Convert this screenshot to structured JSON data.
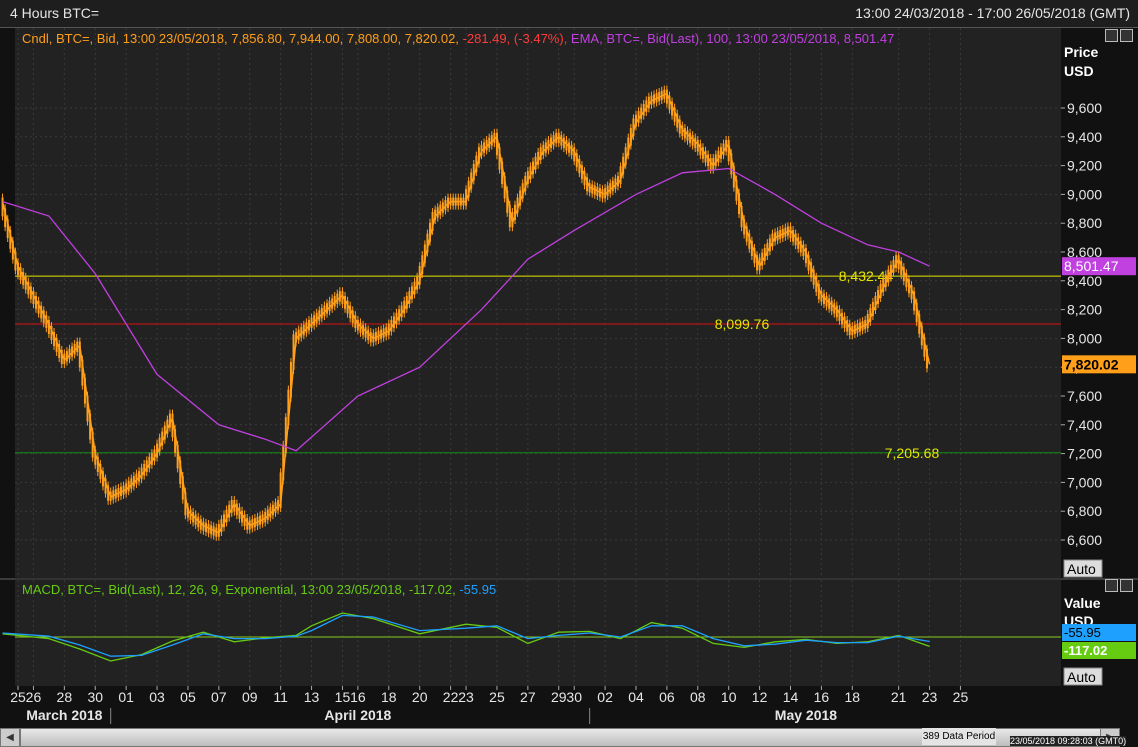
{
  "window": {
    "title": "4 Hours BTC=",
    "range": "13:00 24/03/2018 - 17:00 26/05/2018 (GMT)"
  },
  "colors": {
    "candle": "#ff9f1a",
    "ema": "#c040e0",
    "macd": "#66cc11",
    "signal": "#1ea0ff",
    "line_yellow": "#e6e600",
    "line_red": "#d81010",
    "line_green": "#138a13",
    "panel_bg": "#222222",
    "grid": "#3a3a3a"
  },
  "price_panel": {
    "legend": {
      "candle": "Cndl, BTC=, Bid, 13:00 23/05/2018, 7,856.80, 7,944.00, 7,808.00, 7,820.02,",
      "change": "-281.49, (-3.47%),",
      "ema": "EMA, BTC=, Bid(Last),  100, 13:00 23/05/2018, 8,501.47"
    },
    "axis_title": "Price",
    "axis_unit": "USD",
    "auto_label": "Auto",
    "ema_tag": "8,501.47",
    "last_tag": "7,820.02"
  },
  "macd_panel": {
    "legend_main": "MACD, BTC=, Bid(Last),  12, 26, 9, Exponential, 13:00 23/05/2018, -117.02,",
    "legend_signal": "-55.95",
    "axis_title": "Value",
    "axis_unit": "USD",
    "signal_tag": "-55.95",
    "macd_tag": "-117.02",
    "auto_label": "Auto"
  },
  "footer": {
    "period_label": "389 Data Period",
    "timestamp": "23/05/2018 09:28:03 (GMT0)"
  },
  "chart_data": [
    {
      "type": "candlestick",
      "title": "4 Hours BTC=",
      "ylabel": "Price USD",
      "ylim": [
        6400,
        10200
      ],
      "yticks": [
        6600,
        6800,
        7000,
        7200,
        7400,
        7600,
        7800,
        8000,
        8200,
        8400,
        8600,
        8800,
        9000,
        9200,
        9400,
        9600
      ],
      "xlim": [
        "2018-03-24",
        "2018-05-26"
      ],
      "x_tick_labels": [
        "25",
        "26",
        "28",
        "30",
        "01",
        "03",
        "05",
        "07",
        "09",
        "11",
        "13",
        "15",
        "16",
        "18",
        "20",
        "22",
        "23",
        "25",
        "27",
        "29",
        "30",
        "02",
        "04",
        "06",
        "08",
        "10",
        "12",
        "14",
        "16",
        "18",
        "21",
        "23",
        "25"
      ],
      "x_tick_dates": [
        "2018-03-25",
        "2018-03-26",
        "2018-03-28",
        "2018-03-30",
        "2018-04-01",
        "2018-04-03",
        "2018-04-05",
        "2018-04-07",
        "2018-04-09",
        "2018-04-11",
        "2018-04-13",
        "2018-04-15",
        "2018-04-16",
        "2018-04-18",
        "2018-04-20",
        "2018-04-22",
        "2018-04-23",
        "2018-04-25",
        "2018-04-27",
        "2018-04-29",
        "2018-04-30",
        "2018-05-02",
        "2018-05-04",
        "2018-05-06",
        "2018-05-08",
        "2018-05-10",
        "2018-05-12",
        "2018-05-14",
        "2018-05-16",
        "2018-05-18",
        "2018-05-21",
        "2018-05-23",
        "2018-05-25"
      ],
      "month_labels": [
        {
          "label": "March 2018",
          "date": "2018-03-28"
        },
        {
          "label": "April 2018",
          "date": "2018-04-16"
        },
        {
          "label": "May 2018",
          "date": "2018-05-15"
        }
      ],
      "series_price": {
        "name": "Cndl, BTC=, Bid",
        "dates": [
          "2018-03-24",
          "2018-03-25",
          "2018-03-26",
          "2018-03-27",
          "2018-03-28",
          "2018-03-29",
          "2018-03-30",
          "2018-03-31",
          "2018-04-01",
          "2018-04-02",
          "2018-04-03",
          "2018-04-04",
          "2018-04-05",
          "2018-04-06",
          "2018-04-07",
          "2018-04-08",
          "2018-04-09",
          "2018-04-10",
          "2018-04-11",
          "2018-04-12",
          "2018-04-13",
          "2018-04-14",
          "2018-04-15",
          "2018-04-16",
          "2018-04-17",
          "2018-04-18",
          "2018-04-19",
          "2018-04-20",
          "2018-04-21",
          "2018-04-22",
          "2018-04-23",
          "2018-04-24",
          "2018-04-25",
          "2018-04-26",
          "2018-04-27",
          "2018-04-28",
          "2018-04-29",
          "2018-04-30",
          "2018-05-01",
          "2018-05-02",
          "2018-05-03",
          "2018-05-04",
          "2018-05-05",
          "2018-05-06",
          "2018-05-07",
          "2018-05-08",
          "2018-05-09",
          "2018-05-10",
          "2018-05-11",
          "2018-05-12",
          "2018-05-13",
          "2018-05-14",
          "2018-05-15",
          "2018-05-16",
          "2018-05-17",
          "2018-05-18",
          "2018-05-19",
          "2018-05-20",
          "2018-05-21",
          "2018-05-22",
          "2018-05-23"
        ],
        "close": [
          8950,
          8500,
          8300,
          8100,
          7850,
          7950,
          7200,
          6900,
          6950,
          7050,
          7200,
          7450,
          6800,
          6700,
          6650,
          6850,
          6700,
          6750,
          6850,
          8000,
          8100,
          8200,
          8300,
          8100,
          8000,
          8050,
          8200,
          8400,
          8850,
          8950,
          8950,
          9300,
          9400,
          8800,
          9100,
          9300,
          9400,
          9300,
          9050,
          9000,
          9100,
          9500,
          9650,
          9700,
          9450,
          9350,
          9200,
          9350,
          8800,
          8500,
          8700,
          8750,
          8600,
          8300,
          8200,
          8050,
          8100,
          8350,
          8550,
          8300,
          7820
        ]
      },
      "series_ema": {
        "name": "EMA, BTC=, Bid(Last), 100",
        "dates": [
          "2018-03-24",
          "2018-03-27",
          "2018-03-30",
          "2018-04-03",
          "2018-04-07",
          "2018-04-10",
          "2018-04-12",
          "2018-04-16",
          "2018-04-20",
          "2018-04-24",
          "2018-04-27",
          "2018-04-30",
          "2018-05-04",
          "2018-05-07",
          "2018-05-10",
          "2018-05-13",
          "2018-05-16",
          "2018-05-19",
          "2018-05-21",
          "2018-05-23"
        ],
        "values": [
          8950,
          8850,
          8450,
          7750,
          7400,
          7300,
          7220,
          7600,
          7800,
          8200,
          8550,
          8750,
          9000,
          9150,
          9180,
          9000,
          8800,
          8650,
          8600,
          8501.47
        ]
      },
      "horizontal_lines": [
        {
          "label": "8,432.44",
          "value": 8432.44,
          "color": "yellow"
        },
        {
          "label": "8,099.76",
          "value": 8099.76,
          "color": "red"
        },
        {
          "label": "7,205.68",
          "value": 7205.68,
          "color": "green"
        }
      ]
    },
    {
      "type": "line",
      "title": "MACD, BTC=, Bid(Last), 12, 26, 9, Exponential",
      "ylabel": "Value USD",
      "xlim": [
        "2018-03-24",
        "2018-05-26"
      ],
      "zero_line": 0,
      "ylim": [
        -350,
        350
      ],
      "series": [
        {
          "name": "MACD",
          "dates": [
            "2018-03-24",
            "2018-03-27",
            "2018-03-29",
            "2018-03-31",
            "2018-04-02",
            "2018-04-04",
            "2018-04-06",
            "2018-04-08",
            "2018-04-10",
            "2018-04-12",
            "2018-04-13",
            "2018-04-15",
            "2018-04-17",
            "2018-04-20",
            "2018-04-23",
            "2018-04-25",
            "2018-04-27",
            "2018-04-29",
            "2018-05-01",
            "2018-05-03",
            "2018-05-05",
            "2018-05-07",
            "2018-05-09",
            "2018-05-11",
            "2018-05-13",
            "2018-05-15",
            "2018-05-17",
            "2018-05-19",
            "2018-05-21",
            "2018-05-23"
          ],
          "values": [
            40,
            -20,
            -150,
            -300,
            -220,
            -50,
            60,
            -60,
            -10,
            20,
            140,
            300,
            230,
            40,
            160,
            120,
            -80,
            60,
            70,
            -20,
            180,
            110,
            -80,
            -130,
            -60,
            -30,
            -80,
            -60,
            20,
            -117.02
          ]
        },
        {
          "name": "Signal",
          "dates": [
            "2018-03-24",
            "2018-03-27",
            "2018-03-29",
            "2018-03-31",
            "2018-04-02",
            "2018-04-04",
            "2018-04-06",
            "2018-04-08",
            "2018-04-10",
            "2018-04-12",
            "2018-04-13",
            "2018-04-15",
            "2018-04-17",
            "2018-04-20",
            "2018-04-23",
            "2018-04-25",
            "2018-04-27",
            "2018-04-29",
            "2018-05-01",
            "2018-05-03",
            "2018-05-05",
            "2018-05-07",
            "2018-05-09",
            "2018-05-11",
            "2018-05-13",
            "2018-05-15",
            "2018-05-17",
            "2018-05-19",
            "2018-05-21",
            "2018-05-23"
          ],
          "values": [
            50,
            10,
            -100,
            -240,
            -230,
            -100,
            40,
            -20,
            -20,
            10,
            80,
            270,
            250,
            80,
            110,
            140,
            -20,
            20,
            50,
            0,
            140,
            140,
            -20,
            -110,
            -90,
            -40,
            -70,
            -70,
            10,
            -55.95
          ]
        }
      ]
    }
  ]
}
